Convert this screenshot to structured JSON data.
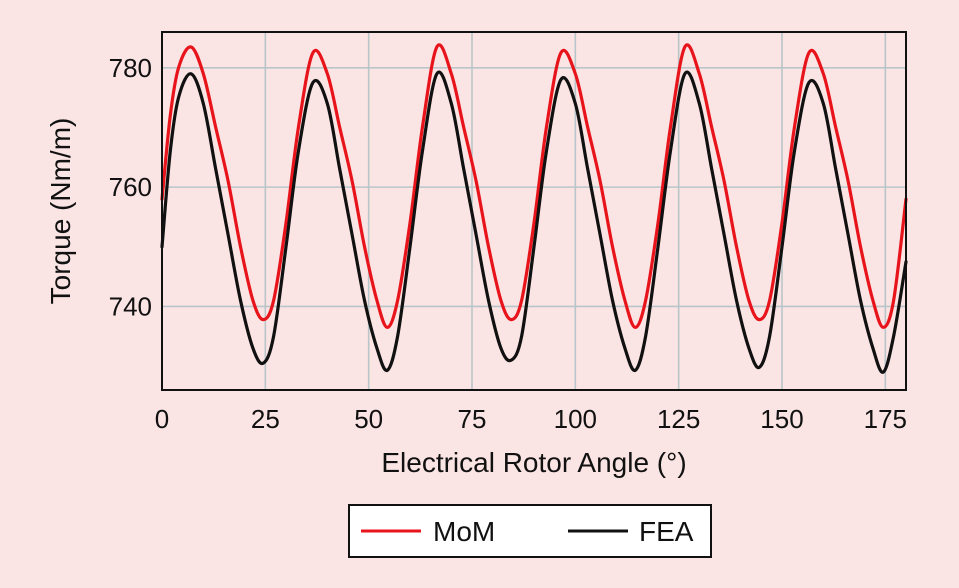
{
  "chart_data": {
    "type": "line",
    "xlabel": "Electrical Rotor Angle (°)",
    "ylabel": "Torque (Nm/m)",
    "xlim": [
      0,
      180
    ],
    "ylim": [
      726,
      786
    ],
    "xticks": [
      0,
      25,
      50,
      75,
      100,
      125,
      150,
      175
    ],
    "yticks": [
      740,
      760,
      780
    ],
    "grid": true,
    "legend_position": "bottom-center",
    "series": [
      {
        "name": "MoM",
        "color": "#e8141b",
        "x": [
          0,
          2,
          4,
          7,
          10,
          13,
          16,
          19,
          22,
          24.5,
          27,
          30,
          33,
          36.5,
          40,
          43,
          46,
          49,
          52,
          54.5,
          57,
          60,
          63,
          66.5,
          70,
          73,
          76,
          79,
          82,
          84.5,
          87,
          90,
          93,
          96.5,
          100,
          103,
          106,
          109,
          112,
          114.5,
          117,
          120,
          123,
          126.5,
          130,
          133,
          136,
          139,
          142,
          144.5,
          147,
          150,
          153,
          156.5,
          160,
          163,
          166,
          169,
          172,
          174.5,
          177,
          180
        ],
        "y": [
          758,
          772,
          780,
          783.5,
          779,
          770,
          761,
          750,
          741,
          737.8,
          741,
          754,
          770,
          782.5,
          779,
          770,
          761,
          750,
          741,
          736.5,
          741,
          754,
          770,
          783.5,
          779,
          770,
          761,
          750,
          741,
          737.8,
          741,
          754,
          770,
          782.5,
          779,
          770,
          761,
          750,
          741,
          736.5,
          741,
          754,
          770,
          783.5,
          779,
          770,
          761,
          750,
          741,
          737.8,
          741,
          754,
          770,
          782.5,
          779,
          770,
          761,
          750,
          741,
          736.5,
          741,
          758
        ]
      },
      {
        "name": "FEA",
        "color": "#111111",
        "x": [
          0,
          2,
          4,
          7,
          10,
          13,
          16,
          19,
          22,
          24.5,
          27,
          30,
          33,
          36.5,
          40,
          43,
          46,
          49,
          52,
          54.5,
          57,
          60,
          63,
          66.5,
          70,
          73,
          76,
          79,
          82,
          84.5,
          87,
          90,
          93,
          96.5,
          100,
          103,
          106,
          109,
          112,
          114.5,
          117,
          120,
          123,
          126.5,
          130,
          133,
          136,
          139,
          142,
          144.5,
          147,
          150,
          153,
          156.5,
          160,
          163,
          166,
          169,
          172,
          174.5,
          177,
          180
        ],
        "y": [
          750,
          766,
          775,
          779,
          774,
          763,
          752,
          741,
          733,
          730.5,
          735,
          750,
          766,
          777.5,
          774,
          763,
          752,
          741,
          733,
          729.3,
          735,
          750,
          766,
          779,
          774,
          763,
          752,
          741,
          733,
          731,
          735,
          750,
          766,
          778,
          774,
          763,
          752,
          741,
          733,
          729.3,
          735,
          750,
          766,
          779,
          774,
          763,
          752,
          741,
          733,
          729.8,
          735,
          750,
          766,
          777.5,
          774,
          763,
          752,
          741,
          733,
          729,
          735,
          747.5
        ]
      }
    ]
  }
}
